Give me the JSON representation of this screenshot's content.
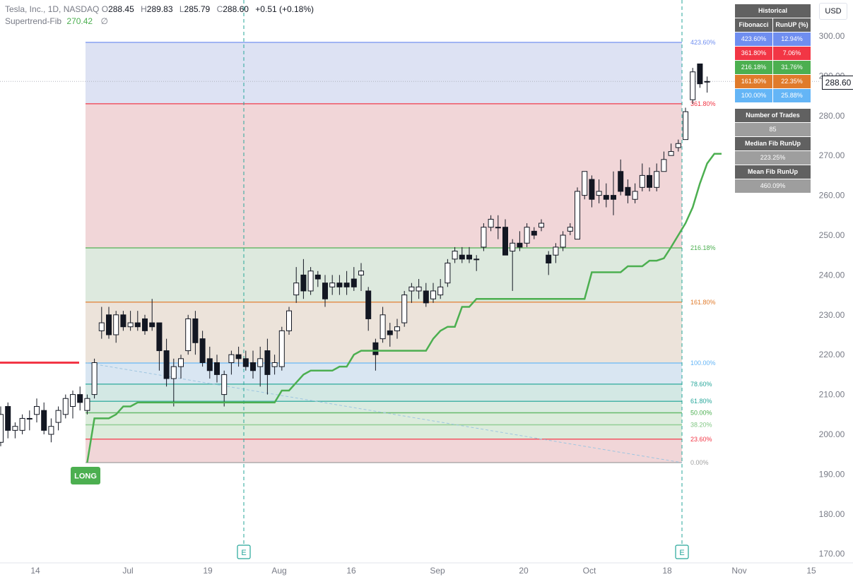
{
  "legend": {
    "symbol": "Tesla, Inc., 1D, NASDAQ",
    "o_label": "O",
    "o_value": "288.45",
    "h_label": "H",
    "h_value": "289.83",
    "l_label": "L",
    "l_value": "285.79",
    "c_label": "C",
    "c_value": "288.60",
    "change": "+0.51 (+0.18%)",
    "indicator_name": "Supertrend-Fib",
    "indicator_value": "270.42",
    "indicator_extra": "∅"
  },
  "currency": "USD",
  "last_price": "288.60",
  "long_label": "LONG",
  "event_marker": "E",
  "stats_table": {
    "title": "Historical",
    "col_fib": "Fibonacci",
    "col_runup": "RunUP (%)",
    "rows": [
      {
        "fib": "423.60%",
        "runup": "12.94%",
        "color": "#6f8ef0"
      },
      {
        "fib": "361.80%",
        "runup": "7.06%",
        "color": "#f23645"
      },
      {
        "fib": "216.18%",
        "runup": "31.76%",
        "color": "#4caf50"
      },
      {
        "fib": "161.80%",
        "runup": "22.35%",
        "color": "#e07b2b"
      },
      {
        "fib": "100.00%",
        "runup": "25.88%",
        "color": "#64b5f6"
      }
    ],
    "trades_label": "Number of Trades",
    "trades_value": "85",
    "median_label": "Median Fib RunUp",
    "median_value": "223.25%",
    "mean_label": "Mean Fib RunUp",
    "mean_value": "460.09%"
  },
  "chart_data": {
    "type": "candlestick",
    "y_axis": {
      "min": 165,
      "max": 305,
      "ticks": [
        170,
        180,
        190,
        200,
        210,
        220,
        230,
        240,
        250,
        260,
        270,
        280,
        290,
        300
      ]
    },
    "x_ticks": [
      "14",
      "Jul",
      "19",
      "Aug",
      "16",
      "Sep",
      "20",
      "Oct",
      "18",
      "Nov",
      "15"
    ],
    "fib_levels": [
      {
        "label": "423.60%",
        "price": 298.4,
        "color": "#6f8ef0",
        "fill": "#dde2f3"
      },
      {
        "label": "361.80%",
        "price": 283.0,
        "color": "#f23645",
        "fill": "#f1d6d8"
      },
      {
        "label": "216.18%",
        "price": 246.8,
        "color": "#4caf50",
        "fill": "#dde9de"
      },
      {
        "label": "161.80%",
        "price": 233.2,
        "color": "#e07b2b",
        "fill": "#ece3da"
      },
      {
        "label": "100.00%",
        "price": 217.9,
        "color": "#64b5f6",
        "fill": "#d9e6f2"
      },
      {
        "label": "78.60%",
        "price": 212.6,
        "color": "#26a69a",
        "fill": "#d3e8e4"
      },
      {
        "label": "61.80%",
        "price": 208.3,
        "color": "#26a69a",
        "fill": "#d9ebe0"
      },
      {
        "label": "50.00%",
        "price": 205.4,
        "color": "#4caf50",
        "fill": "#dcecdc"
      },
      {
        "label": "38.20%",
        "price": 202.4,
        "color": "#81c784",
        "fill": "#dcecdc"
      },
      {
        "label": "23.60%",
        "price": 198.8,
        "color": "#f23645",
        "fill": "#f1d6d8"
      },
      {
        "label": "0.00%",
        "price": 192.9,
        "color": "#9e9e9e",
        "fill": "none"
      }
    ],
    "entry_line_price": 218.0,
    "candles": [
      {
        "o": 198,
        "h": 207,
        "l": 197,
        "c": 205
      },
      {
        "o": 207,
        "h": 208,
        "l": 199,
        "c": 201
      },
      {
        "o": 201,
        "h": 203,
        "l": 199,
        "c": 202
      },
      {
        "o": 201,
        "h": 205,
        "l": 200,
        "c": 204
      },
      {
        "o": 204,
        "h": 206,
        "l": 201,
        "c": 204
      },
      {
        "o": 205,
        "h": 209,
        "l": 203,
        "c": 207
      },
      {
        "o": 206,
        "h": 208,
        "l": 200,
        "c": 201
      },
      {
        "o": 200,
        "h": 204,
        "l": 198,
        "c": 202
      },
      {
        "o": 203,
        "h": 207,
        "l": 201,
        "c": 206
      },
      {
        "o": 205,
        "h": 210,
        "l": 204,
        "c": 209
      },
      {
        "o": 207,
        "h": 211,
        "l": 204,
        "c": 210
      },
      {
        "o": 210,
        "h": 212,
        "l": 206,
        "c": 208
      },
      {
        "o": 206,
        "h": 210,
        "l": 205,
        "c": 209
      },
      {
        "o": 210,
        "h": 219,
        "l": 209,
        "c": 218
      },
      {
        "o": 226,
        "h": 232,
        "l": 224,
        "c": 228
      },
      {
        "o": 230,
        "h": 232,
        "l": 224,
        "c": 225
      },
      {
        "o": 225,
        "h": 231,
        "l": 223,
        "c": 230
      },
      {
        "o": 230,
        "h": 231,
        "l": 226,
        "c": 227
      },
      {
        "o": 227,
        "h": 231,
        "l": 226,
        "c": 228
      },
      {
        "o": 228,
        "h": 231,
        "l": 226,
        "c": 227
      },
      {
        "o": 229,
        "h": 230,
        "l": 225,
        "c": 226
      },
      {
        "o": 228,
        "h": 234,
        "l": 226,
        "c": 227
      },
      {
        "o": 228,
        "h": 228,
        "l": 216,
        "c": 221
      },
      {
        "o": 221,
        "h": 224,
        "l": 212,
        "c": 214
      },
      {
        "o": 214,
        "h": 219,
        "l": 207,
        "c": 217
      },
      {
        "o": 217,
        "h": 220,
        "l": 214,
        "c": 219
      },
      {
        "o": 221,
        "h": 230,
        "l": 220,
        "c": 229
      },
      {
        "o": 229,
        "h": 231,
        "l": 220,
        "c": 223
      },
      {
        "o": 224,
        "h": 226,
        "l": 217,
        "c": 218
      },
      {
        "o": 219,
        "h": 222,
        "l": 214,
        "c": 216
      },
      {
        "o": 218,
        "h": 220,
        "l": 213,
        "c": 215
      },
      {
        "o": 210,
        "h": 216,
        "l": 207,
        "c": 215
      },
      {
        "o": 218,
        "h": 221,
        "l": 215,
        "c": 220
      },
      {
        "o": 220,
        "h": 222,
        "l": 217,
        "c": 219
      },
      {
        "o": 219,
        "h": 221,
        "l": 216,
        "c": 217
      },
      {
        "o": 218,
        "h": 221,
        "l": 214,
        "c": 216
      },
      {
        "o": 217,
        "h": 222,
        "l": 212,
        "c": 219
      },
      {
        "o": 221,
        "h": 224,
        "l": 210,
        "c": 215
      },
      {
        "o": 217,
        "h": 220,
        "l": 215,
        "c": 218
      },
      {
        "o": 217,
        "h": 227,
        "l": 216,
        "c": 226
      },
      {
        "o": 226,
        "h": 232,
        "l": 225,
        "c": 231
      },
      {
        "o": 235,
        "h": 242,
        "l": 233,
        "c": 238
      },
      {
        "o": 240,
        "h": 244,
        "l": 234,
        "c": 236
      },
      {
        "o": 236,
        "h": 242,
        "l": 235,
        "c": 241
      },
      {
        "o": 240,
        "h": 241,
        "l": 237,
        "c": 239
      },
      {
        "o": 238,
        "h": 240,
        "l": 232,
        "c": 234
      },
      {
        "o": 237,
        "h": 240,
        "l": 235,
        "c": 238
      },
      {
        "o": 238,
        "h": 240,
        "l": 235,
        "c": 237
      },
      {
        "o": 238,
        "h": 241,
        "l": 235,
        "c": 237
      },
      {
        "o": 239,
        "h": 242,
        "l": 236,
        "c": 237
      },
      {
        "o": 240,
        "h": 243,
        "l": 236,
        "c": 241
      },
      {
        "o": 236,
        "h": 237,
        "l": 226,
        "c": 229
      },
      {
        "o": 223,
        "h": 224,
        "l": 216,
        "c": 220
      },
      {
        "o": 224,
        "h": 232,
        "l": 223,
        "c": 230
      },
      {
        "o": 226,
        "h": 228,
        "l": 222,
        "c": 225
      },
      {
        "o": 226,
        "h": 229,
        "l": 224,
        "c": 227
      },
      {
        "o": 228,
        "h": 236,
        "l": 227,
        "c": 235
      },
      {
        "o": 236,
        "h": 238,
        "l": 233,
        "c": 237
      },
      {
        "o": 236,
        "h": 239,
        "l": 234,
        "c": 237
      },
      {
        "o": 236,
        "h": 238,
        "l": 232,
        "c": 233
      },
      {
        "o": 234,
        "h": 238,
        "l": 233,
        "c": 236
      },
      {
        "o": 235,
        "h": 239,
        "l": 234,
        "c": 237
      },
      {
        "o": 238,
        "h": 244,
        "l": 237,
        "c": 243
      },
      {
        "o": 244,
        "h": 247,
        "l": 243,
        "c": 246
      },
      {
        "o": 245,
        "h": 247,
        "l": 243,
        "c": 244
      },
      {
        "o": 245,
        "h": 247,
        "l": 243,
        "c": 244
      },
      {
        "o": 244,
        "h": 245,
        "l": 241,
        "c": 244
      },
      {
        "o": 247,
        "h": 253,
        "l": 246,
        "c": 252
      },
      {
        "o": 252,
        "h": 255,
        "l": 251,
        "c": 254
      },
      {
        "o": 252,
        "h": 255,
        "l": 249,
        "c": 252
      },
      {
        "o": 252,
        "h": 254,
        "l": 245,
        "c": 245
      },
      {
        "o": 246,
        "h": 249,
        "l": 236,
        "c": 248
      },
      {
        "o": 248,
        "h": 251,
        "l": 246,
        "c": 247
      },
      {
        "o": 248,
        "h": 253,
        "l": 247,
        "c": 252
      },
      {
        "o": 251,
        "h": 252,
        "l": 249,
        "c": 250
      },
      {
        "o": 252,
        "h": 254,
        "l": 251,
        "c": 253
      },
      {
        "o": 245,
        "h": 246,
        "l": 240,
        "c": 243
      },
      {
        "o": 245,
        "h": 248,
        "l": 243,
        "c": 247
      },
      {
        "o": 247,
        "h": 251,
        "l": 246,
        "c": 250
      },
      {
        "o": 251,
        "h": 253,
        "l": 250,
        "c": 252
      },
      {
        "o": 249,
        "h": 262,
        "l": 249,
        "c": 261
      },
      {
        "o": 260,
        "h": 266,
        "l": 259,
        "c": 266
      },
      {
        "o": 264,
        "h": 265,
        "l": 257,
        "c": 259
      },
      {
        "o": 260,
        "h": 264,
        "l": 258,
        "c": 261
      },
      {
        "o": 260,
        "h": 263,
        "l": 257,
        "c": 259
      },
      {
        "o": 260,
        "h": 266,
        "l": 255,
        "c": 259
      },
      {
        "o": 266,
        "h": 269,
        "l": 260,
        "c": 261
      },
      {
        "o": 262,
        "h": 264,
        "l": 258,
        "c": 260
      },
      {
        "o": 259,
        "h": 263,
        "l": 258,
        "c": 261
      },
      {
        "o": 262,
        "h": 268,
        "l": 261,
        "c": 265
      },
      {
        "o": 265,
        "h": 267,
        "l": 261,
        "c": 262
      },
      {
        "o": 262,
        "h": 268,
        "l": 261,
        "c": 266
      },
      {
        "o": 266,
        "h": 271,
        "l": 266,
        "c": 269
      },
      {
        "o": 270,
        "h": 273,
        "l": 270,
        "c": 271
      },
      {
        "o": 272,
        "h": 274,
        "l": 271,
        "c": 273
      },
      {
        "o": 274,
        "h": 282,
        "l": 274,
        "c": 281
      },
      {
        "o": 284,
        "h": 292,
        "l": 283,
        "c": 291
      },
      {
        "o": 293,
        "h": 293,
        "l": 287,
        "c": 288
      },
      {
        "o": 288.45,
        "h": 289.83,
        "l": 285.79,
        "c": 288.6
      }
    ],
    "supertrend": [
      192.9,
      204,
      204,
      204,
      205,
      207,
      207,
      208,
      208,
      208,
      208,
      208,
      208,
      208,
      208,
      208,
      208,
      208,
      208,
      208,
      208,
      208,
      208,
      208,
      208,
      208,
      208,
      211,
      211,
      213,
      215,
      216,
      216,
      216,
      216,
      217,
      217,
      220,
      221,
      221,
      221,
      221,
      221,
      221,
      221,
      221,
      221,
      221,
      224,
      226,
      227,
      227,
      232,
      232,
      234,
      234,
      234,
      234,
      234,
      234,
      234,
      234,
      234,
      234,
      234,
      234,
      234,
      234,
      234,
      234,
      240.7,
      240.7,
      240.7,
      240.7,
      240.7,
      242.2,
      242.2,
      242.2,
      243.6,
      243.6,
      244.2,
      247,
      250,
      253,
      257,
      263,
      268,
      270.42,
      270.42
    ]
  }
}
